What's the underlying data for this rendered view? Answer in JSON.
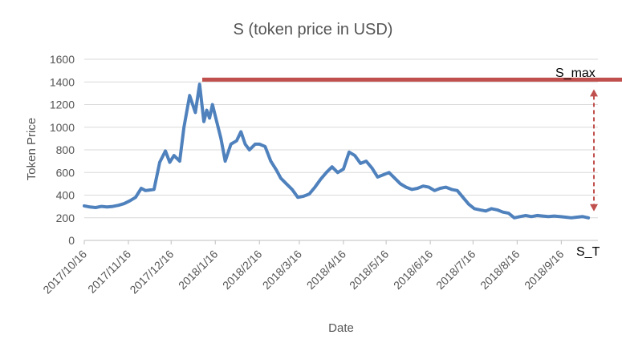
{
  "chart_data": {
    "type": "line",
    "title": "S (token price in USD)",
    "xlabel": "Date",
    "ylabel": "Token Price",
    "ylim": [
      0,
      1600
    ],
    "yticks": [
      0,
      200,
      400,
      600,
      800,
      1000,
      1200,
      1400,
      1600
    ],
    "xlim": [
      "2017-10-16",
      "2018-10-05"
    ],
    "xticks": [
      "2017/10/16",
      "2017/11/16",
      "2017/12/16",
      "2018/1/16",
      "2018/2/16",
      "2018/3/16",
      "2018/4/16",
      "2018/5/16",
      "2018/6/16",
      "2018/7/16",
      "2018/8/16",
      "2018/9/16"
    ],
    "grid": "horizontal",
    "line_color": "#4f81bd",
    "series": [
      {
        "x": [
          "2017-10-16",
          "2017-10-20",
          "2017-10-24",
          "2017-10-28",
          "2017-11-01",
          "2017-11-05",
          "2017-11-09",
          "2017-11-13",
          "2017-11-17",
          "2017-11-21",
          "2017-11-25",
          "2017-11-28",
          "2017-12-01",
          "2017-12-04",
          "2017-12-08",
          "2017-12-12",
          "2017-12-15",
          "2017-12-18",
          "2017-12-22",
          "2017-12-25",
          "2017-12-29",
          "2018-01-02",
          "2018-01-05",
          "2018-01-08",
          "2018-01-10",
          "2018-01-12",
          "2018-01-14",
          "2018-01-17",
          "2018-01-20",
          "2018-01-23",
          "2018-01-27",
          "2018-01-31",
          "2018-02-03",
          "2018-02-06",
          "2018-02-09",
          "2018-02-13",
          "2018-02-16",
          "2018-02-20",
          "2018-02-24",
          "2018-02-28",
          "2018-03-03",
          "2018-03-07",
          "2018-03-11",
          "2018-03-15",
          "2018-03-19",
          "2018-03-23",
          "2018-03-27",
          "2018-03-31",
          "2018-04-04",
          "2018-04-08",
          "2018-04-12",
          "2018-04-16",
          "2018-04-20",
          "2018-04-24",
          "2018-04-28",
          "2018-05-02",
          "2018-05-06",
          "2018-05-10",
          "2018-05-14",
          "2018-05-18",
          "2018-05-22",
          "2018-05-26",
          "2018-05-30",
          "2018-06-03",
          "2018-06-07",
          "2018-06-11",
          "2018-06-15",
          "2018-06-19",
          "2018-06-23",
          "2018-06-27",
          "2018-07-01",
          "2018-07-05",
          "2018-07-09",
          "2018-07-13",
          "2018-07-17",
          "2018-07-21",
          "2018-07-25",
          "2018-07-29",
          "2018-08-02",
          "2018-08-06",
          "2018-08-10",
          "2018-08-14",
          "2018-08-18",
          "2018-08-22",
          "2018-08-26",
          "2018-08-30",
          "2018-09-03",
          "2018-09-07",
          "2018-09-11",
          "2018-09-15",
          "2018-09-19",
          "2018-09-23",
          "2018-09-27",
          "2018-10-01",
          "2018-10-05"
        ],
        "y": [
          305,
          295,
          290,
          300,
          295,
          300,
          310,
          325,
          350,
          380,
          460,
          440,
          445,
          450,
          690,
          790,
          690,
          750,
          700,
          1000,
          1280,
          1130,
          1380,
          1050,
          1150,
          1080,
          1200,
          1050,
          900,
          700,
          850,
          880,
          960,
          850,
          800,
          850,
          850,
          830,
          700,
          620,
          550,
          500,
          450,
          380,
          390,
          410,
          470,
          540,
          600,
          650,
          600,
          630,
          780,
          750,
          680,
          700,
          640,
          560,
          580,
          600,
          550,
          500,
          470,
          450,
          460,
          480,
          470,
          440,
          460,
          470,
          450,
          440,
          380,
          320,
          280,
          270,
          260,
          280,
          270,
          250,
          240,
          200,
          210,
          220,
          210,
          220,
          215,
          210,
          215,
          210,
          205,
          200,
          205,
          210,
          200
        ]
      }
    ],
    "annotations": [
      {
        "text": "S_max",
        "value": 1420
      },
      {
        "text": "S_T",
        "value": 200
      }
    ],
    "annotation_color": "#c0504d"
  }
}
